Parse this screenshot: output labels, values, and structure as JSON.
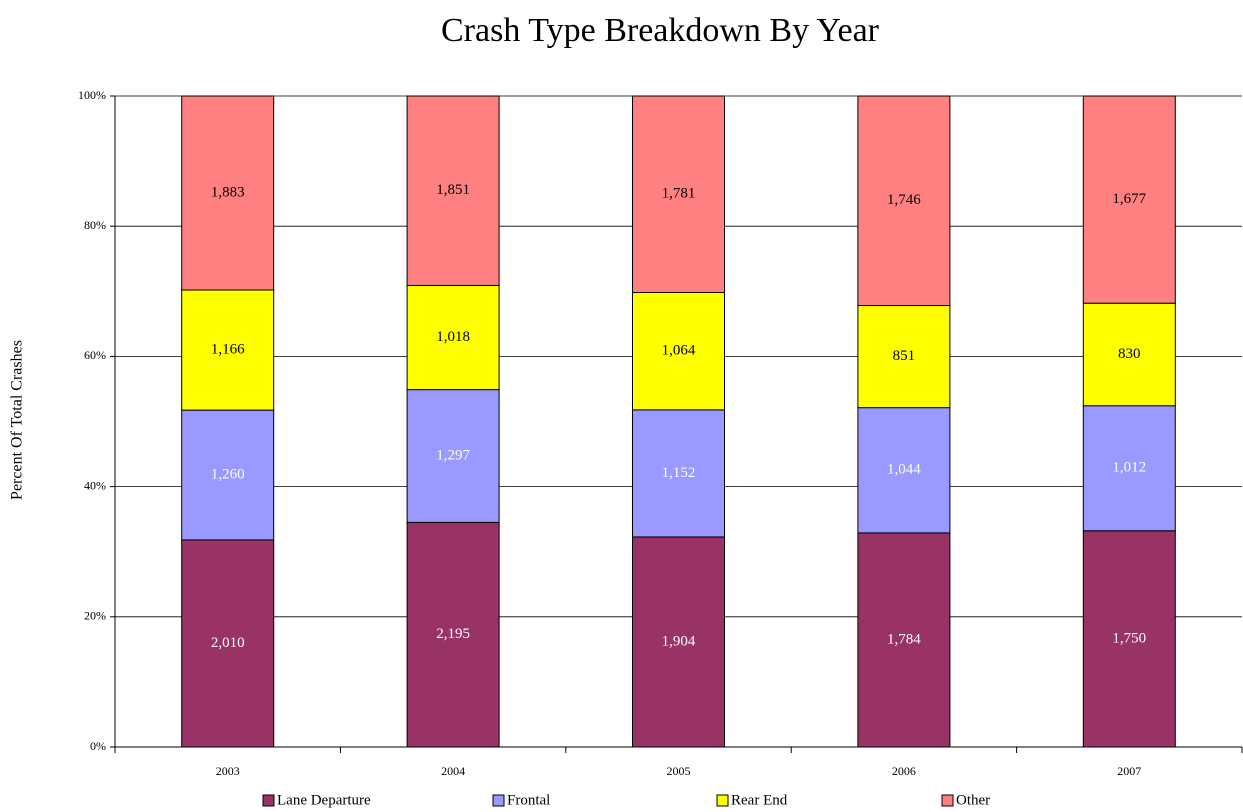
{
  "chart_data": {
    "type": "bar",
    "stack": "percent",
    "title": "Crash Type Breakdown By Year",
    "y_label": "Percent Of Total Crashes",
    "categories": [
      "2003",
      "2004",
      "2005",
      "2006",
      "2007"
    ],
    "series": [
      {
        "name": "Lane Departure",
        "color": "#993366",
        "label_color": "#ffffff",
        "values": [
          2010,
          2195,
          1904,
          1784,
          1750
        ],
        "value_labels": [
          "2,010",
          "2,195",
          "1,904",
          "1,784",
          "1,750"
        ]
      },
      {
        "name": "Frontal",
        "color": "#9999ff",
        "label_color": "#ffffff",
        "values": [
          1260,
          1297,
          1152,
          1044,
          1012
        ],
        "value_labels": [
          "1,260",
          "1,297",
          "1,152",
          "1,044",
          "1,012"
        ]
      },
      {
        "name": "Rear End",
        "color": "#ffff00",
        "label_color": "#000000",
        "values": [
          1166,
          1018,
          1064,
          851,
          830
        ],
        "value_labels": [
          "1,166",
          "1,018",
          "1,064",
          "851",
          "830"
        ]
      },
      {
        "name": "Other",
        "color": "#ff8080",
        "label_color": "#000000",
        "values": [
          1883,
          1851,
          1781,
          1746,
          1677
        ],
        "value_labels": [
          "1,883",
          "1,851",
          "1,781",
          "1,746",
          "1,677"
        ]
      }
    ],
    "ylim": [
      0,
      100
    ],
    "yticks": [
      {
        "value": 0,
        "label": "0%"
      },
      {
        "value": 20,
        "label": "20%"
      },
      {
        "value": 40,
        "label": "40%"
      },
      {
        "value": 60,
        "label": "60%"
      },
      {
        "value": 80,
        "label": "80%"
      },
      {
        "value": 100,
        "label": "100%"
      }
    ],
    "grid": true,
    "legend": "bottom"
  }
}
